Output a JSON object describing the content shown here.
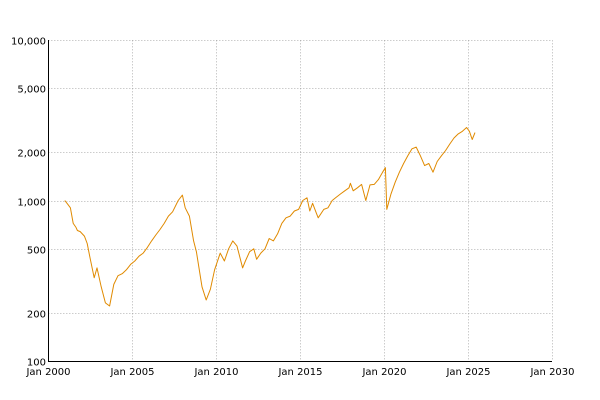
{
  "chart_data": {
    "type": "line",
    "title": "",
    "xlabel": "",
    "ylabel": "",
    "y_scale": "log",
    "xlim": [
      "2000-01",
      "2030-01"
    ],
    "ylim": [
      100,
      10000
    ],
    "grid": true,
    "legend": "none",
    "line_color": "#e08a00",
    "grid_color": "#999999",
    "x_ticks": [
      {
        "value": "2000-01",
        "label": "Jan 2000"
      },
      {
        "value": "2005-01",
        "label": "Jan 2005"
      },
      {
        "value": "2010-01",
        "label": "Jan 2010"
      },
      {
        "value": "2015-01",
        "label": "Jan 2015"
      },
      {
        "value": "2020-01",
        "label": "Jan 2020"
      },
      {
        "value": "2025-01",
        "label": "Jan 2025"
      },
      {
        "value": "2030-01",
        "label": "Jan 2030"
      }
    ],
    "y_ticks": [
      {
        "value": 100,
        "label": "100"
      },
      {
        "value": 200,
        "label": "200"
      },
      {
        "value": 500,
        "label": "500"
      },
      {
        "value": 1000,
        "label": "1,000"
      },
      {
        "value": 2000,
        "label": "2,000"
      },
      {
        "value": 5000,
        "label": "5,000"
      },
      {
        "value": 10000,
        "label": "10,000"
      }
    ],
    "series": [
      {
        "x": [
          "2001-01",
          "2001-03",
          "2001-05",
          "2001-07",
          "2001-09",
          "2001-10",
          "2001-12",
          "2002-03",
          "2002-05",
          "2002-07",
          "2002-10",
          "2002-12",
          "2003-03",
          "2003-06",
          "2003-09",
          "2003-12",
          "2004-03",
          "2004-06",
          "2004-09",
          "2004-12",
          "2005-03",
          "2005-06",
          "2005-09",
          "2005-12",
          "2006-03",
          "2006-06",
          "2006-09",
          "2006-12",
          "2007-03",
          "2007-06",
          "2007-10",
          "2008-01",
          "2008-03",
          "2008-06",
          "2008-09",
          "2008-11",
          "2009-03",
          "2009-06",
          "2009-09",
          "2009-12",
          "2010-04",
          "2010-07",
          "2010-10",
          "2011-01",
          "2011-04",
          "2011-08",
          "2011-10",
          "2012-01",
          "2012-04",
          "2012-06",
          "2012-09",
          "2012-12",
          "2013-03",
          "2013-06",
          "2013-09",
          "2013-12",
          "2014-03",
          "2014-06",
          "2014-09",
          "2014-12",
          "2015-03",
          "2015-06",
          "2015-08",
          "2015-10",
          "2016-01",
          "2016-02",
          "2016-06",
          "2016-09",
          "2016-12",
          "2017-03",
          "2017-06",
          "2017-09",
          "2017-12",
          "2018-01",
          "2018-03",
          "2018-06",
          "2018-09",
          "2018-12",
          "2019-03",
          "2019-06",
          "2019-09",
          "2019-12",
          "2020-02",
          "2020-03",
          "2020-06",
          "2020-09",
          "2020-12",
          "2021-03",
          "2021-06",
          "2021-09",
          "2021-12",
          "2022-03",
          "2022-06",
          "2022-09",
          "2022-12",
          "2023-03",
          "2023-06",
          "2023-09",
          "2023-12",
          "2024-03",
          "2024-06",
          "2024-09",
          "2024-12",
          "2025-02",
          "2025-04",
          "2025-06"
        ],
        "y": [
          1000,
          950,
          900,
          720,
          680,
          650,
          640,
          600,
          540,
          440,
          330,
          380,
          290,
          230,
          220,
          300,
          340,
          350,
          370,
          400,
          420,
          450,
          470,
          510,
          560,
          610,
          660,
          720,
          800,
          850,
          1000,
          1080,
          900,
          800,
          560,
          480,
          290,
          240,
          280,
          370,
          470,
          420,
          500,
          560,
          520,
          380,
          420,
          480,
          500,
          430,
          470,
          500,
          580,
          560,
          620,
          720,
          780,
          800,
          860,
          880,
          1000,
          1040,
          860,
          960,
          820,
          780,
          880,
          900,
          1000,
          1050,
          1100,
          1150,
          1200,
          1280,
          1150,
          1200,
          1260,
          1000,
          1250,
          1260,
          1350,
          1500,
          1600,
          880,
          1100,
          1300,
          1500,
          1700,
          1900,
          2100,
          2150,
          1900,
          1650,
          1700,
          1500,
          1750,
          1900,
          2050,
          2250,
          2450,
          2600,
          2700,
          2850,
          2700,
          2400,
          2650
        ]
      }
    ]
  }
}
